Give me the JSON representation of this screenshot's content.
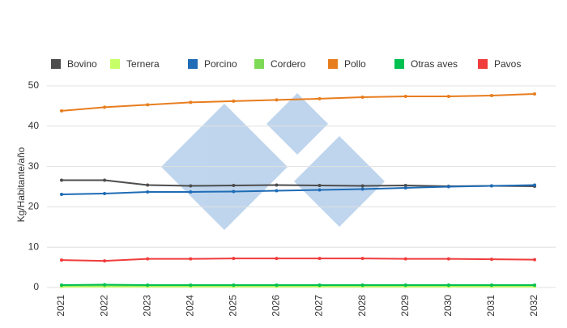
{
  "chart_data": {
    "type": "line",
    "y_label": "Kg/Habitante/año",
    "categories": [
      "2021",
      "2022",
      "2023",
      "2024",
      "2025",
      "2026",
      "2027",
      "2028",
      "2029",
      "2030",
      "2031",
      "2032"
    ],
    "ylim": [
      0,
      50
    ],
    "yticks": [
      0,
      10,
      20,
      30,
      40,
      50
    ],
    "grid": true,
    "series": [
      {
        "name": "Bovino",
        "color": "#4d4d4d",
        "values": [
          26.6,
          26.6,
          25.4,
          25.2,
          25.3,
          25.4,
          25.3,
          25.2,
          25.3,
          25.1,
          25.2,
          25.1
        ]
      },
      {
        "name": "Ternera",
        "color": "#c6ff66",
        "values": [
          0.2,
          0.2,
          0.2,
          0.2,
          0.2,
          0.2,
          0.2,
          0.2,
          0.2,
          0.2,
          0.2,
          0.2
        ]
      },
      {
        "name": "Porcino",
        "color": "#1f6bb5",
        "values": [
          23.1,
          23.3,
          23.7,
          23.7,
          23.8,
          24.0,
          24.2,
          24.4,
          24.7,
          25.0,
          25.2,
          25.4
        ]
      },
      {
        "name": "Cordero",
        "color": "#7ed957",
        "values": [
          0.5,
          0.5,
          0.5,
          0.5,
          0.5,
          0.5,
          0.5,
          0.5,
          0.5,
          0.5,
          0.5,
          0.5
        ]
      },
      {
        "name": "Pollo",
        "color": "#e87d1e",
        "values": [
          43.8,
          44.7,
          45.3,
          45.9,
          46.2,
          46.5,
          46.8,
          47.2,
          47.4,
          47.4,
          47.6,
          48.0
        ]
      },
      {
        "name": "Otras aves",
        "color": "#00c050",
        "values": [
          0.6,
          0.7,
          0.6,
          0.6,
          0.6,
          0.6,
          0.6,
          0.6,
          0.6,
          0.6,
          0.6,
          0.6
        ]
      },
      {
        "name": "Pavos",
        "color": "#f03c3c",
        "values": [
          6.8,
          6.6,
          7.1,
          7.1,
          7.2,
          7.2,
          7.2,
          7.2,
          7.1,
          7.1,
          7.0,
          6.9
        ]
      }
    ]
  }
}
